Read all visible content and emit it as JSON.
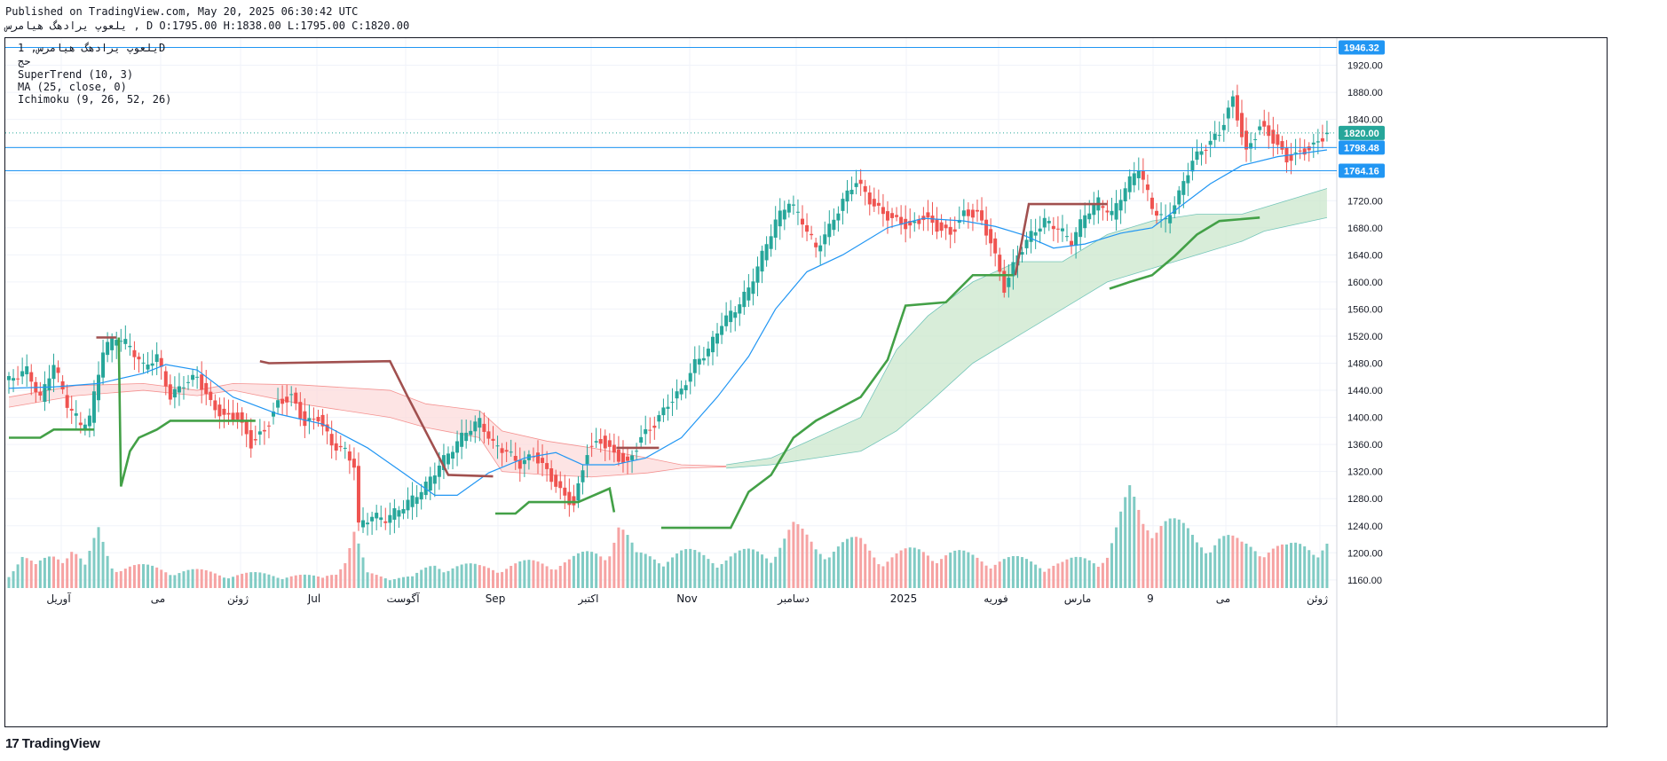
{
  "header": {
    "line1": "Published on TradingView.com, May 20, 2025 06:30:42 UTC",
    "line2": "یلعوپ یرادهگ هیامرس , D O:1795.00 H:1838.00 L:1795.00 C:1820.00"
  },
  "legend": {
    "symbol": "یلعوپ یرادهگ هیامرس, 1D",
    "sub": "حج",
    "supertrend": "SuperTrend (10, 3)",
    "ma": "MA (25, close, 0)",
    "ichimoku": "Ichimoku (9, 26, 52, 26)"
  },
  "footer": {
    "logo_mark": "17",
    "logo_text": "TradingView"
  },
  "colors": {
    "up": "#26a69a",
    "down": "#ef5350",
    "up_vol": "#80cbc4",
    "down_vol": "#f6a3a3",
    "ma": "#2196f3",
    "st_up": "#43a047",
    "st_down": "#a1504f",
    "cloud_bull": "#c8e6c9",
    "cloud_bear": "#fcd9d9",
    "hline": "#2196f3",
    "label_bg": "#2196f3",
    "close_label_bg": "#26a69a"
  },
  "chart_data": {
    "type": "candlestick",
    "y_ticks": [
      1160,
      1200,
      1240,
      1280,
      1320,
      1360,
      1400,
      1440,
      1480,
      1520,
      1560,
      1600,
      1640,
      1680,
      1720,
      1760,
      1800,
      1840,
      1880,
      1920
    ],
    "ylim": [
      1148,
      1960
    ],
    "x_labels": [
      "آوریل",
      "می",
      "ژوئن",
      "Jul",
      "آگوست",
      "Sep",
      "اکتبر",
      "Nov",
      "دسامبر",
      "2025",
      "فوریه",
      "مارس",
      "9",
      "می",
      "ژوئن"
    ],
    "price_labels": [
      {
        "value": 1946.32,
        "text": "1946.32"
      },
      {
        "value": 1820.0,
        "text": "1820.00"
      },
      {
        "value": 1798.48,
        "text": "1798.48"
      },
      {
        "value": 1764.16,
        "text": "1764.16"
      }
    ],
    "horizontal_lines": [
      1946.32,
      1798.48,
      1764.16
    ],
    "last_close": 1820.0,
    "close_path": [
      [
        0,
        1455
      ],
      [
        8,
        1470
      ],
      [
        14,
        1428
      ],
      [
        20,
        1480
      ],
      [
        26,
        1420
      ],
      [
        32,
        1390
      ],
      [
        36,
        1400
      ],
      [
        42,
        1500
      ],
      [
        48,
        1520
      ],
      [
        54,
        1505
      ],
      [
        60,
        1475
      ],
      [
        66,
        1490
      ],
      [
        72,
        1430
      ],
      [
        78,
        1450
      ],
      [
        84,
        1460
      ],
      [
        90,
        1420
      ],
      [
        96,
        1400
      ],
      [
        102,
        1400
      ],
      [
        108,
        1360
      ],
      [
        114,
        1380
      ],
      [
        120,
        1420
      ],
      [
        126,
        1430
      ],
      [
        132,
        1390
      ],
      [
        138,
        1400
      ],
      [
        144,
        1360
      ],
      [
        150,
        1350
      ],
      [
        154,
        1330
      ],
      [
        156,
        1240
      ],
      [
        162,
        1255
      ],
      [
        168,
        1250
      ],
      [
        174,
        1265
      ],
      [
        180,
        1280
      ],
      [
        186,
        1300
      ],
      [
        192,
        1330
      ],
      [
        198,
        1355
      ],
      [
        204,
        1380
      ],
      [
        210,
        1395
      ],
      [
        216,
        1360
      ],
      [
        222,
        1350
      ],
      [
        228,
        1330
      ],
      [
        234,
        1345
      ],
      [
        240,
        1320
      ],
      [
        246,
        1290
      ],
      [
        252,
        1270
      ],
      [
        258,
        1350
      ],
      [
        264,
        1365
      ],
      [
        270,
        1345
      ],
      [
        276,
        1330
      ],
      [
        282,
        1370
      ],
      [
        288,
        1390
      ],
      [
        294,
        1420
      ],
      [
        300,
        1440
      ],
      [
        306,
        1480
      ],
      [
        312,
        1500
      ],
      [
        318,
        1540
      ],
      [
        324,
        1560
      ],
      [
        330,
        1590
      ],
      [
        336,
        1640
      ],
      [
        342,
        1690
      ],
      [
        348,
        1720
      ],
      [
        354,
        1690
      ],
      [
        360,
        1650
      ],
      [
        366,
        1680
      ],
      [
        372,
        1720
      ],
      [
        378,
        1750
      ],
      [
        384,
        1720
      ],
      [
        390,
        1700
      ],
      [
        396,
        1690
      ],
      [
        402,
        1680
      ],
      [
        408,
        1695
      ],
      [
        414,
        1680
      ],
      [
        420,
        1670
      ],
      [
        426,
        1700
      ],
      [
        432,
        1700
      ],
      [
        438,
        1660
      ],
      [
        444,
        1590
      ],
      [
        450,
        1640
      ],
      [
        456,
        1670
      ],
      [
        462,
        1690
      ],
      [
        468,
        1680
      ],
      [
        474,
        1660
      ],
      [
        480,
        1700
      ],
      [
        486,
        1720
      ],
      [
        492,
        1700
      ],
      [
        498,
        1740
      ],
      [
        504,
        1770
      ],
      [
        510,
        1710
      ],
      [
        516,
        1690
      ],
      [
        522,
        1730
      ],
      [
        528,
        1780
      ],
      [
        534,
        1800
      ],
      [
        540,
        1820
      ],
      [
        546,
        1870
      ],
      [
        552,
        1790
      ],
      [
        558,
        1830
      ],
      [
        564,
        1810
      ],
      [
        570,
        1780
      ],
      [
        576,
        1790
      ],
      [
        582,
        1800
      ],
      [
        588,
        1820
      ]
    ],
    "ma_path": [
      [
        0,
        1443
      ],
      [
        20,
        1445
      ],
      [
        40,
        1450
      ],
      [
        60,
        1465
      ],
      [
        70,
        1478
      ],
      [
        84,
        1470
      ],
      [
        100,
        1430
      ],
      [
        120,
        1405
      ],
      [
        140,
        1390
      ],
      [
        160,
        1355
      ],
      [
        176,
        1318
      ],
      [
        190,
        1285
      ],
      [
        200,
        1285
      ],
      [
        214,
        1318
      ],
      [
        230,
        1340
      ],
      [
        244,
        1348
      ],
      [
        256,
        1330
      ],
      [
        270,
        1330
      ],
      [
        284,
        1340
      ],
      [
        300,
        1370
      ],
      [
        316,
        1430
      ],
      [
        330,
        1490
      ],
      [
        342,
        1560
      ],
      [
        356,
        1615
      ],
      [
        372,
        1640
      ],
      [
        392,
        1680
      ],
      [
        408,
        1694
      ],
      [
        426,
        1690
      ],
      [
        440,
        1682
      ],
      [
        452,
        1670
      ],
      [
        466,
        1650
      ],
      [
        480,
        1656
      ],
      [
        496,
        1672
      ],
      [
        510,
        1680
      ],
      [
        522,
        1710
      ],
      [
        536,
        1745
      ],
      [
        550,
        1772
      ],
      [
        566,
        1785
      ],
      [
        588,
        1795
      ]
    ],
    "supertrend": [
      {
        "trend": "up",
        "points": [
          [
            0,
            1370
          ],
          [
            14,
            1370
          ],
          [
            20,
            1382
          ],
          [
            34,
            1382
          ],
          [
            38,
            1382
          ]
        ]
      },
      {
        "trend": "down",
        "points": [
          [
            39,
            1518
          ],
          [
            48,
            1518
          ]
        ]
      },
      {
        "trend": "up",
        "points": [
          [
            49,
            1518
          ],
          [
            50,
            1298
          ],
          [
            54,
            1350
          ],
          [
            58,
            1370
          ],
          [
            66,
            1382
          ],
          [
            72,
            1395
          ],
          [
            110,
            1395
          ]
        ]
      },
      {
        "trend": "down",
        "points": [
          [
            112,
            1483
          ],
          [
            116,
            1480
          ],
          [
            170,
            1483
          ],
          [
            178,
            1430
          ],
          [
            196,
            1315
          ],
          [
            216,
            1313
          ]
        ]
      },
      {
        "trend": "up",
        "points": [
          [
            217,
            1258
          ],
          [
            226,
            1258
          ],
          [
            232,
            1275
          ],
          [
            254,
            1275
          ],
          [
            268,
            1295
          ],
          [
            270,
            1260
          ]
        ]
      },
      {
        "trend": "down",
        "points": [
          [
            271,
            1355
          ],
          [
            290,
            1355
          ]
        ]
      },
      {
        "trend": "up",
        "points": [
          [
            291,
            1237
          ],
          [
            322,
            1237
          ],
          [
            330,
            1290
          ],
          [
            340,
            1315
          ],
          [
            350,
            1370
          ],
          [
            360,
            1395
          ],
          [
            380,
            1430
          ],
          [
            392,
            1485
          ],
          [
            400,
            1565
          ],
          [
            418,
            1570
          ],
          [
            430,
            1610
          ],
          [
            448,
            1610
          ]
        ]
      },
      {
        "trend": "down",
        "points": [
          [
            449,
            1610
          ],
          [
            455,
            1715
          ],
          [
            490,
            1715
          ]
        ]
      },
      {
        "trend": "up",
        "points": [
          [
            491,
            1590
          ],
          [
            500,
            1600
          ],
          [
            510,
            1610
          ],
          [
            520,
            1638
          ],
          [
            530,
            1670
          ],
          [
            540,
            1690
          ],
          [
            558,
            1695
          ]
        ]
      }
    ],
    "cloud_bear_regions": [
      {
        "top": [
          [
            0,
            1430
          ],
          [
            30,
            1447
          ],
          [
            60,
            1450
          ],
          [
            84,
            1440
          ],
          [
            100,
            1450
          ],
          [
            130,
            1448
          ],
          [
            170,
            1440
          ],
          [
            186,
            1420
          ],
          [
            210,
            1410
          ],
          [
            220,
            1380
          ],
          [
            240,
            1365
          ],
          [
            260,
            1355
          ],
          [
            285,
            1340
          ],
          [
            300,
            1330
          ],
          [
            320,
            1328
          ]
        ],
        "bottom": [
          [
            0,
            1415
          ],
          [
            30,
            1432
          ],
          [
            60,
            1440
          ],
          [
            84,
            1432
          ],
          [
            100,
            1440
          ],
          [
            130,
            1420
          ],
          [
            170,
            1400
          ],
          [
            186,
            1385
          ],
          [
            210,
            1370
          ],
          [
            220,
            1320
          ],
          [
            240,
            1315
          ],
          [
            260,
            1312
          ],
          [
            285,
            1318
          ],
          [
            300,
            1325
          ],
          [
            320,
            1327
          ]
        ]
      }
    ],
    "cloud_bull_regions": [
      {
        "top": [
          [
            320,
            1330
          ],
          [
            340,
            1340
          ],
          [
            360,
            1370
          ],
          [
            380,
            1400
          ],
          [
            396,
            1500
          ],
          [
            410,
            1550
          ],
          [
            430,
            1600
          ],
          [
            450,
            1630
          ],
          [
            470,
            1630
          ],
          [
            490,
            1670
          ],
          [
            510,
            1690
          ],
          [
            530,
            1700
          ],
          [
            550,
            1700
          ],
          [
            560,
            1710
          ],
          [
            588,
            1738
          ]
        ],
        "bottom": [
          [
            320,
            1325
          ],
          [
            340,
            1330
          ],
          [
            360,
            1340
          ],
          [
            380,
            1350
          ],
          [
            396,
            1380
          ],
          [
            410,
            1420
          ],
          [
            430,
            1480
          ],
          [
            450,
            1520
          ],
          [
            470,
            1560
          ],
          [
            490,
            1600
          ],
          [
            510,
            1620
          ],
          [
            530,
            1640
          ],
          [
            550,
            1660
          ],
          [
            560,
            1675
          ],
          [
            588,
            1695
          ]
        ]
      }
    ],
    "volume_profile": [
      [
        0,
        0.25
      ],
      [
        6,
        0.45
      ],
      [
        12,
        0.3
      ],
      [
        20,
        0.5
      ],
      [
        28,
        0.6
      ],
      [
        34,
        0.3
      ],
      [
        40,
        0.8
      ],
      [
        46,
        0.35
      ],
      [
        60,
        0.3
      ],
      [
        80,
        0.25
      ],
      [
        100,
        0.2
      ],
      [
        120,
        0.2
      ],
      [
        140,
        0.15
      ],
      [
        150,
        0.4
      ],
      [
        154,
        0.75
      ],
      [
        160,
        0.2
      ],
      [
        180,
        0.15
      ],
      [
        190,
        0.35
      ],
      [
        210,
        0.3
      ],
      [
        230,
        0.35
      ],
      [
        250,
        0.4
      ],
      [
        266,
        0.55
      ],
      [
        272,
        0.95
      ],
      [
        280,
        0.45
      ],
      [
        300,
        0.5
      ],
      [
        320,
        0.45
      ],
      [
        340,
        0.55
      ],
      [
        350,
        0.85
      ],
      [
        360,
        0.6
      ],
      [
        380,
        0.65
      ],
      [
        390,
        0.45
      ],
      [
        410,
        0.55
      ],
      [
        430,
        0.45
      ],
      [
        450,
        0.4
      ],
      [
        470,
        0.35
      ],
      [
        490,
        0.5
      ],
      [
        500,
        1.3
      ],
      [
        506,
        1.0
      ],
      [
        512,
        1.1
      ],
      [
        520,
        0.9
      ],
      [
        530,
        0.7
      ],
      [
        540,
        0.75
      ],
      [
        550,
        0.6
      ],
      [
        560,
        0.65
      ],
      [
        570,
        0.55
      ],
      [
        588,
        0.7
      ]
    ]
  }
}
